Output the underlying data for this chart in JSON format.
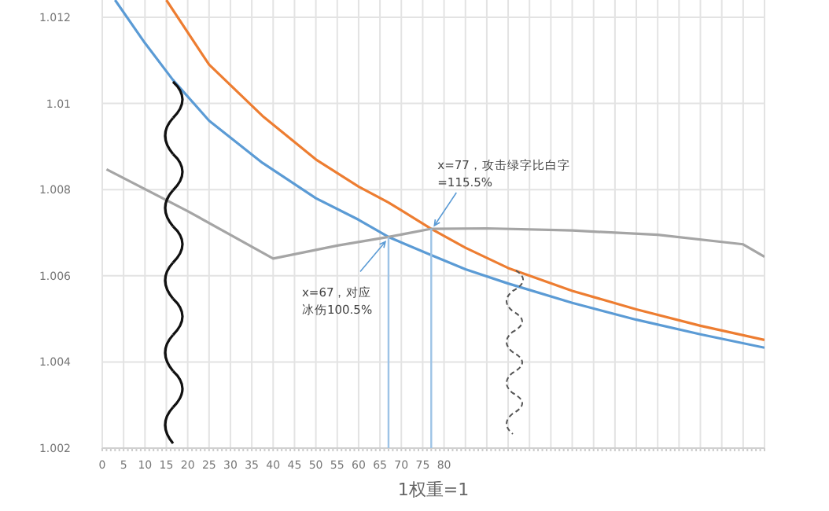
{
  "chart_data": {
    "type": "line",
    "xlabel": "1权重=1",
    "grid": true,
    "line_style": "solid",
    "xlim": [
      0,
      155
    ],
    "ylim": [
      1.002,
      1.0124
    ],
    "xticks": [
      0,
      5,
      10,
      15,
      20,
      25,
      30,
      35,
      40,
      45,
      50,
      55,
      60,
      65,
      70,
      75,
      80,
      {
        "value": 85,
        "label": null
      },
      {
        "value": 90,
        "label": null
      },
      {
        "value": 95,
        "label": null
      },
      {
        "value": 100,
        "label": null
      },
      {
        "value": 105,
        "label": null
      },
      {
        "value": 110,
        "label": null
      },
      {
        "value": 115,
        "label": null
      },
      {
        "value": 120,
        "label": null
      },
      {
        "value": 125,
        "label": null
      },
      {
        "value": 130,
        "label": null
      },
      {
        "value": 135,
        "label": null
      },
      {
        "value": 140,
        "label": null
      },
      {
        "value": 145,
        "label": null
      },
      {
        "value": 150,
        "label": null
      },
      {
        "value": 155,
        "label": null
      }
    ],
    "yticks": [
      1.002,
      1.004,
      1.006,
      1.008,
      1.01,
      1.012
    ],
    "series": [
      {
        "color": "#5b9bd5",
        "x": [
          3,
          10,
          16.5,
          25,
          37.5,
          50,
          60,
          67,
          77,
          85,
          95,
          110,
          125,
          140,
          155
        ],
        "values": [
          1.0124,
          1.0114,
          1.01055,
          1.0096,
          1.00862,
          1.0078,
          1.0073,
          1.0069,
          1.00648,
          1.00615,
          1.00582,
          1.00537,
          1.00498,
          1.00464,
          1.00433
        ]
      },
      {
        "color": "#ed7d31",
        "x": [
          15,
          25,
          37.5,
          50,
          60,
          67,
          77,
          85,
          95,
          110,
          125,
          140,
          155
        ],
        "values": [
          1.0124,
          1.0109,
          1.00971,
          1.0087,
          1.00807,
          1.0077,
          1.00709,
          1.00665,
          1.00618,
          1.00565,
          1.00522,
          1.00484,
          1.00451
        ]
      },
      {
        "color": "#a5a5a5",
        "x": [
          1,
          20,
          40,
          55,
          67,
          77,
          90,
          110,
          130,
          150,
          155
        ],
        "values": [
          1.00847,
          1.0075,
          1.0064,
          1.0067,
          1.0069,
          1.00709,
          1.0071,
          1.00705,
          1.00695,
          1.00673,
          1.00644
        ]
      }
    ],
    "annotations": [
      {
        "text": "x=67，对应冰伤100.5%",
        "x": 67,
        "y": 1.0069
      },
      {
        "text": "x=77，攻击绿字比白字=115.5%",
        "x": 77,
        "y": 1.00709
      }
    ]
  }
}
